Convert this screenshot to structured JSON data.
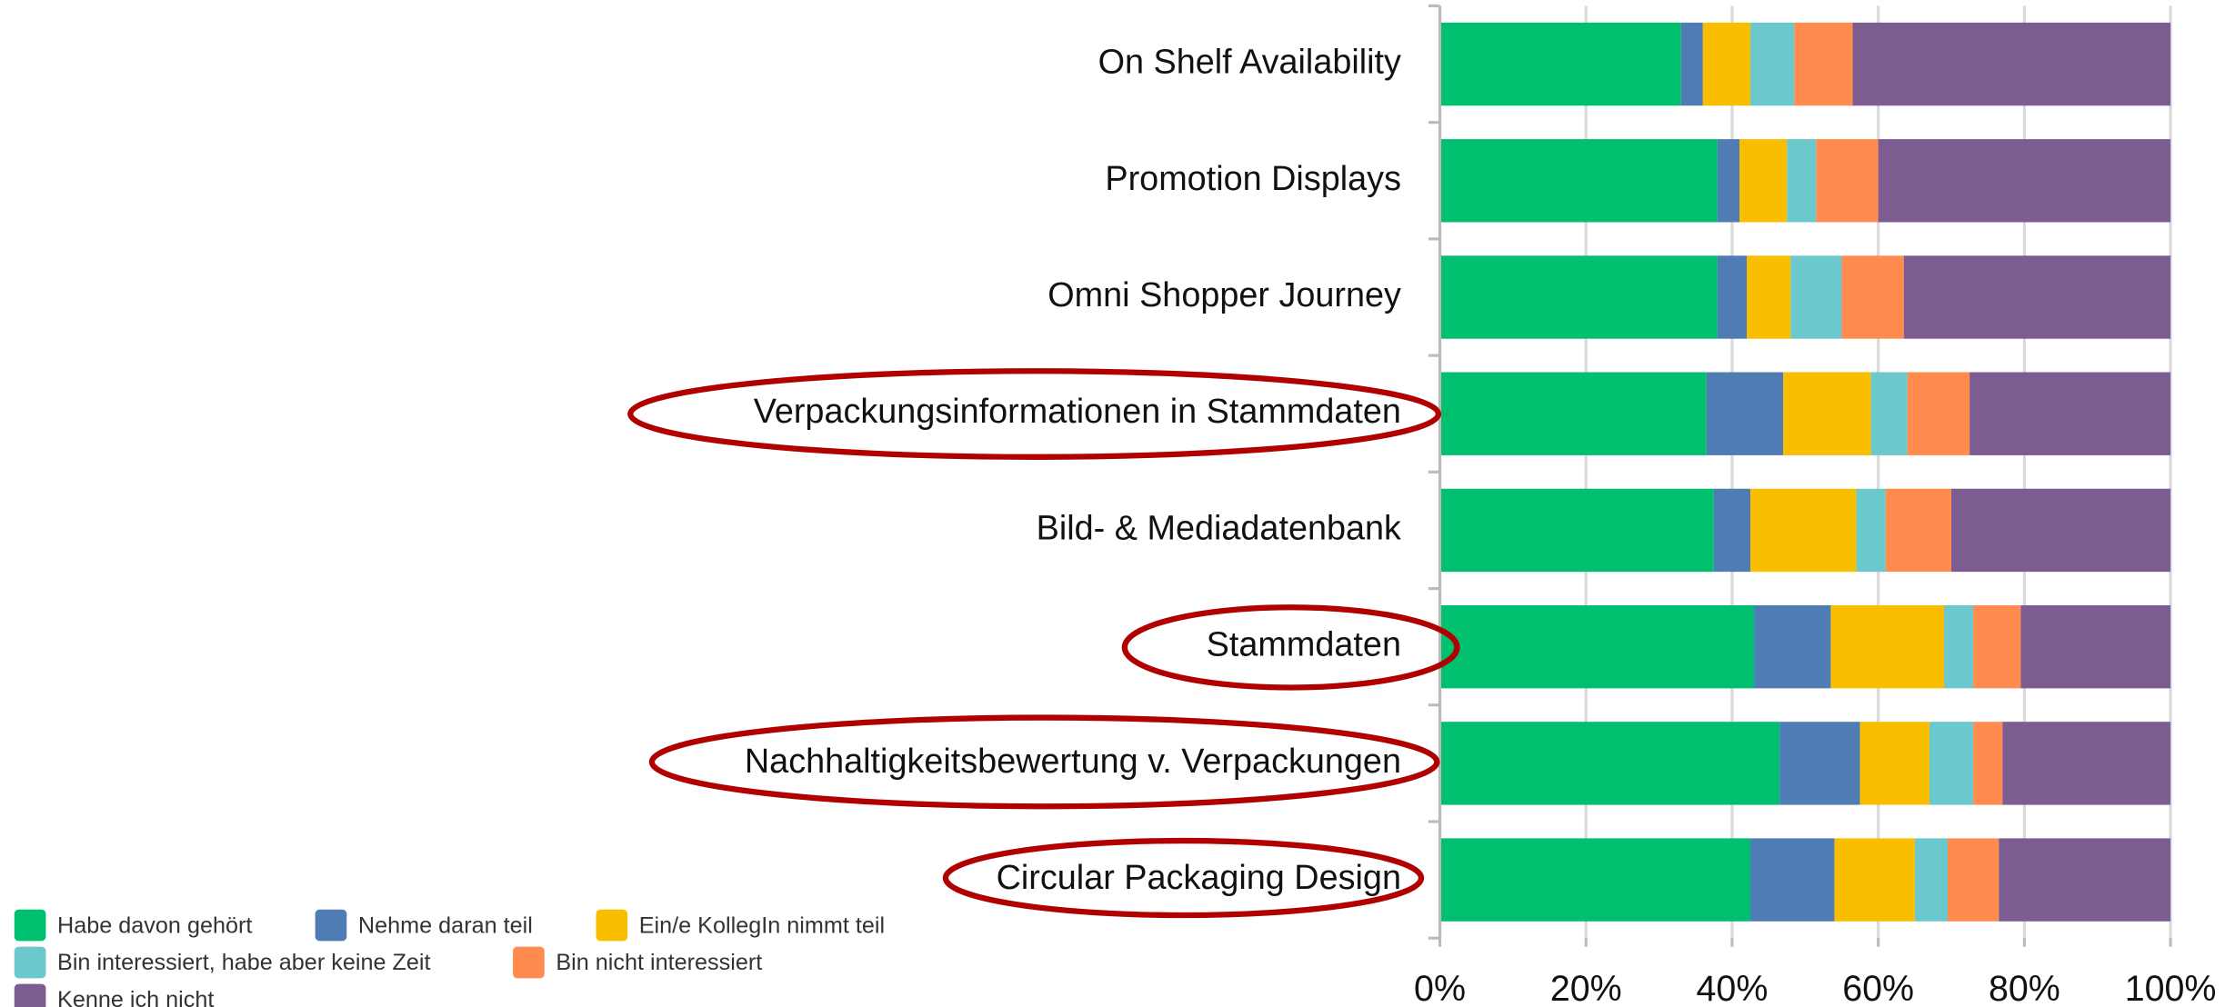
{
  "chart_data": {
    "type": "stacked_bar_horizontal",
    "categories": [
      "On Shelf Availability",
      "Promotion Displays",
      "Omni Shopper Journey",
      "Verpackungsinformationen in Stammdaten",
      "Bild- & Mediadatenbank",
      "Stammdaten",
      "Nachhaltigkeitsbewertung v. Verpackungen",
      "Circular Packaging Design"
    ],
    "series": [
      {
        "name": "Habe davon gehört",
        "color": "#00bf6f",
        "values": [
          33,
          38,
          38,
          36.5,
          37.5,
          43,
          46.5,
          42.5
        ]
      },
      {
        "name": "Nehme daran teil",
        "color": "#507cb6",
        "values": [
          3,
          3,
          4,
          10.5,
          5,
          10.5,
          11,
          11.5
        ]
      },
      {
        "name": "Ein/e KollegIn nimmt teil",
        "color": "#f9be00",
        "values": [
          6.5,
          6.5,
          6,
          12,
          14.5,
          15.5,
          9.5,
          11
        ]
      },
      {
        "name": "Bin interessiert, habe aber keine Zeit",
        "color": "#6bc8cd",
        "values": [
          6,
          4,
          7,
          5,
          4,
          4,
          6,
          4.5
        ]
      },
      {
        "name": "Bin nicht interessiert",
        "color": "#ff8b4f",
        "values": [
          8,
          8.5,
          8.5,
          8.5,
          9,
          6.5,
          4,
          7
        ]
      },
      {
        "name": "Kenne ich nicht",
        "color": "#7d5c91",
        "values": [
          43.5,
          40,
          36.5,
          27.5,
          30,
          20.5,
          23,
          23.5
        ]
      }
    ],
    "xlim": [
      0,
      100
    ],
    "xticks": [
      {
        "value": 0,
        "label": "0%"
      },
      {
        "value": 20,
        "label": "20%"
      },
      {
        "value": 40,
        "label": "40%"
      },
      {
        "value": 60,
        "label": "60%"
      },
      {
        "value": 80,
        "label": "80%"
      },
      {
        "value": 100,
        "label": "100%"
      }
    ],
    "grid": true,
    "legend": "bottom-left"
  }
}
